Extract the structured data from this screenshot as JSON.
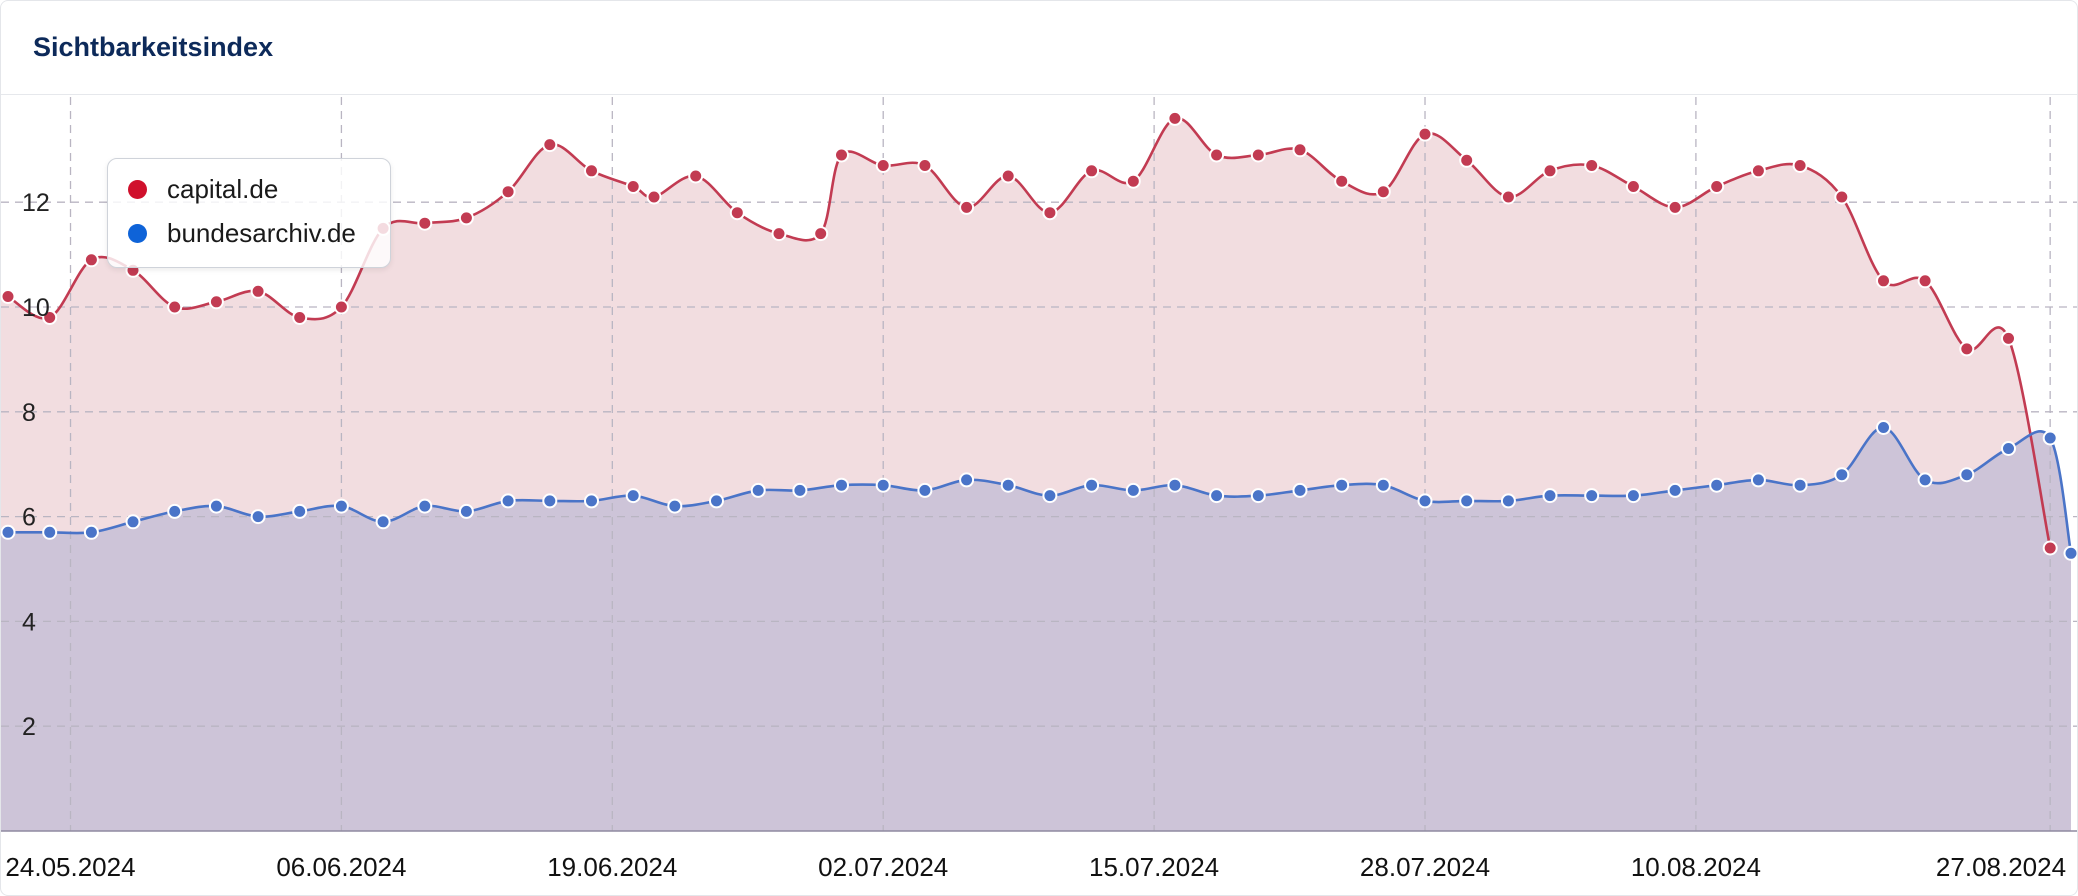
{
  "header": {
    "title": "Sichtbarkeitsindex"
  },
  "chart_data": {
    "type": "area",
    "title": "Sichtbarkeitsindex",
    "xlabel": "",
    "ylabel": "",
    "ylim": [
      0,
      14
    ],
    "yticks": [
      2,
      4,
      6,
      8,
      10,
      12
    ],
    "grid": true,
    "legend_position": "top-left",
    "x_start": "2024-05-21",
    "x_end": "2024-08-28",
    "x_tick_labels": [
      "24.05.2024",
      "06.06.2024",
      "19.06.2024",
      "02.07.2024",
      "15.07.2024",
      "28.07.2024",
      "10.08.2024",
      "27.08.2024"
    ],
    "x_tick_dates": [
      "2024-05-24",
      "2024-06-06",
      "2024-06-19",
      "2024-07-02",
      "2024-07-15",
      "2024-07-28",
      "2024-08-10",
      "2024-08-27"
    ],
    "series": [
      {
        "name": "capital.de",
        "color": "#c23b52",
        "fill": "#f2dde0",
        "legend_color": "#d0102c",
        "points": [
          [
            "2024-05-21",
            10.2
          ],
          [
            "2024-05-23",
            9.8
          ],
          [
            "2024-05-25",
            10.9
          ],
          [
            "2024-05-27",
            10.7
          ],
          [
            "2024-05-29",
            10.0
          ],
          [
            "2024-05-31",
            10.1
          ],
          [
            "2024-06-02",
            10.3
          ],
          [
            "2024-06-04",
            9.8
          ],
          [
            "2024-06-06",
            10.0
          ],
          [
            "2024-06-08",
            11.5
          ],
          [
            "2024-06-10",
            11.6
          ],
          [
            "2024-06-12",
            11.7
          ],
          [
            "2024-06-14",
            12.2
          ],
          [
            "2024-06-16",
            13.1
          ],
          [
            "2024-06-18",
            12.6
          ],
          [
            "2024-06-20",
            12.3
          ],
          [
            "2024-06-21",
            12.1
          ],
          [
            "2024-06-23",
            12.5
          ],
          [
            "2024-06-25",
            11.8
          ],
          [
            "2024-06-27",
            11.4
          ],
          [
            "2024-06-29",
            11.4
          ],
          [
            "2024-06-30",
            12.9
          ],
          [
            "2024-07-02",
            12.7
          ],
          [
            "2024-07-04",
            12.7
          ],
          [
            "2024-07-06",
            11.9
          ],
          [
            "2024-07-08",
            12.5
          ],
          [
            "2024-07-10",
            11.8
          ],
          [
            "2024-07-12",
            12.6
          ],
          [
            "2024-07-14",
            12.4
          ],
          [
            "2024-07-16",
            13.6
          ],
          [
            "2024-07-18",
            12.9
          ],
          [
            "2024-07-20",
            12.9
          ],
          [
            "2024-07-22",
            13.0
          ],
          [
            "2024-07-24",
            12.4
          ],
          [
            "2024-07-26",
            12.2
          ],
          [
            "2024-07-28",
            13.3
          ],
          [
            "2024-07-30",
            12.8
          ],
          [
            "2024-08-01",
            12.1
          ],
          [
            "2024-08-03",
            12.6
          ],
          [
            "2024-08-05",
            12.7
          ],
          [
            "2024-08-07",
            12.3
          ],
          [
            "2024-08-09",
            11.9
          ],
          [
            "2024-08-11",
            12.3
          ],
          [
            "2024-08-13",
            12.6
          ],
          [
            "2024-08-15",
            12.7
          ],
          [
            "2024-08-17",
            12.1
          ],
          [
            "2024-08-19",
            10.5
          ],
          [
            "2024-08-21",
            10.5
          ],
          [
            "2024-08-23",
            9.2
          ],
          [
            "2024-08-25",
            9.4
          ],
          [
            "2024-08-27",
            5.4
          ]
        ]
      },
      {
        "name": "bundesarchiv.de",
        "color": "#4a74c8",
        "fill": "#cdc4d8",
        "legend_color": "#0e63d8",
        "points": [
          [
            "2024-05-21",
            5.7
          ],
          [
            "2024-05-23",
            5.7
          ],
          [
            "2024-05-25",
            5.7
          ],
          [
            "2024-05-27",
            5.9
          ],
          [
            "2024-05-29",
            6.1
          ],
          [
            "2024-05-31",
            6.2
          ],
          [
            "2024-06-02",
            6.0
          ],
          [
            "2024-06-04",
            6.1
          ],
          [
            "2024-06-06",
            6.2
          ],
          [
            "2024-06-08",
            5.9
          ],
          [
            "2024-06-10",
            6.2
          ],
          [
            "2024-06-12",
            6.1
          ],
          [
            "2024-06-14",
            6.3
          ],
          [
            "2024-06-16",
            6.3
          ],
          [
            "2024-06-18",
            6.3
          ],
          [
            "2024-06-20",
            6.4
          ],
          [
            "2024-06-22",
            6.2
          ],
          [
            "2024-06-24",
            6.3
          ],
          [
            "2024-06-26",
            6.5
          ],
          [
            "2024-06-28",
            6.5
          ],
          [
            "2024-06-30",
            6.6
          ],
          [
            "2024-07-02",
            6.6
          ],
          [
            "2024-07-04",
            6.5
          ],
          [
            "2024-07-06",
            6.7
          ],
          [
            "2024-07-08",
            6.6
          ],
          [
            "2024-07-10",
            6.4
          ],
          [
            "2024-07-12",
            6.6
          ],
          [
            "2024-07-14",
            6.5
          ],
          [
            "2024-07-16",
            6.6
          ],
          [
            "2024-07-18",
            6.4
          ],
          [
            "2024-07-20",
            6.4
          ],
          [
            "2024-07-22",
            6.5
          ],
          [
            "2024-07-24",
            6.6
          ],
          [
            "2024-07-26",
            6.6
          ],
          [
            "2024-07-28",
            6.3
          ],
          [
            "2024-07-30",
            6.3
          ],
          [
            "2024-08-01",
            6.3
          ],
          [
            "2024-08-03",
            6.4
          ],
          [
            "2024-08-05",
            6.4
          ],
          [
            "2024-08-07",
            6.4
          ],
          [
            "2024-08-09",
            6.5
          ],
          [
            "2024-08-11",
            6.6
          ],
          [
            "2024-08-13",
            6.7
          ],
          [
            "2024-08-15",
            6.6
          ],
          [
            "2024-08-17",
            6.8
          ],
          [
            "2024-08-19",
            7.7
          ],
          [
            "2024-08-21",
            6.7
          ],
          [
            "2024-08-23",
            6.8
          ],
          [
            "2024-08-25",
            7.3
          ],
          [
            "2024-08-27",
            7.5
          ],
          [
            "2024-08-28",
            5.3
          ]
        ]
      }
    ]
  }
}
